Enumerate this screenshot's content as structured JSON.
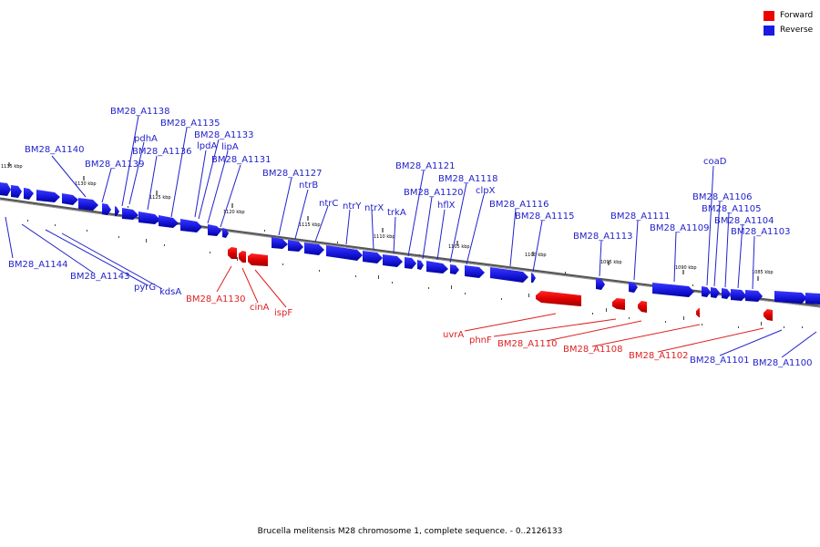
{
  "legend": {
    "forward_label": "Forward",
    "reverse_label": "Reverse",
    "forward_color": "#ee0000",
    "reverse_color": "#1a1ae0"
  },
  "caption": "Brucella melitensis M28 chromosome 1, complete sequence. - 0..2126133",
  "ticks": [
    "1135 kbp",
    "1130 kbp",
    "1125 kbp",
    "1120 kbp",
    "1115 kbp",
    "1110 kbp",
    "1105 kbp",
    "1100 kbp",
    "1095 kbp",
    "1090 kbp",
    "1085 kbp"
  ],
  "reverse_genes": [
    "BM28_A1138",
    "BM28_A1135",
    "pdhA",
    "BM28_A1133",
    "BM28_A1136",
    "lpdA",
    "lipA",
    "BM28_A1140",
    "BM28_A1139",
    "BM28_A1131",
    "BM28_A1127",
    "ntrB",
    "BM28_A1121",
    "BM28_A1118",
    "BM28_A1120",
    "clpX",
    "hflX",
    "ntrC",
    "ntrY",
    "ntrX",
    "trkA",
    "BM28_A1116",
    "BM28_A1115",
    "coaD",
    "BM28_A1106",
    "BM28_A1111",
    "BM28_A1105",
    "BM28_A1109",
    "BM28_A1104",
    "BM28_A1113",
    "BM28_A1103",
    "BM28_A1144",
    "BM28_A1143",
    "pyrG",
    "kdsA",
    "BM28_A1101",
    "BM28_A1100"
  ],
  "forward_genes": [
    "BM28_A1130",
    "cinA",
    "ispF",
    "uvrA",
    "phnF",
    "BM28_A1110",
    "BM28_A1108",
    "BM28_A1102"
  ]
}
